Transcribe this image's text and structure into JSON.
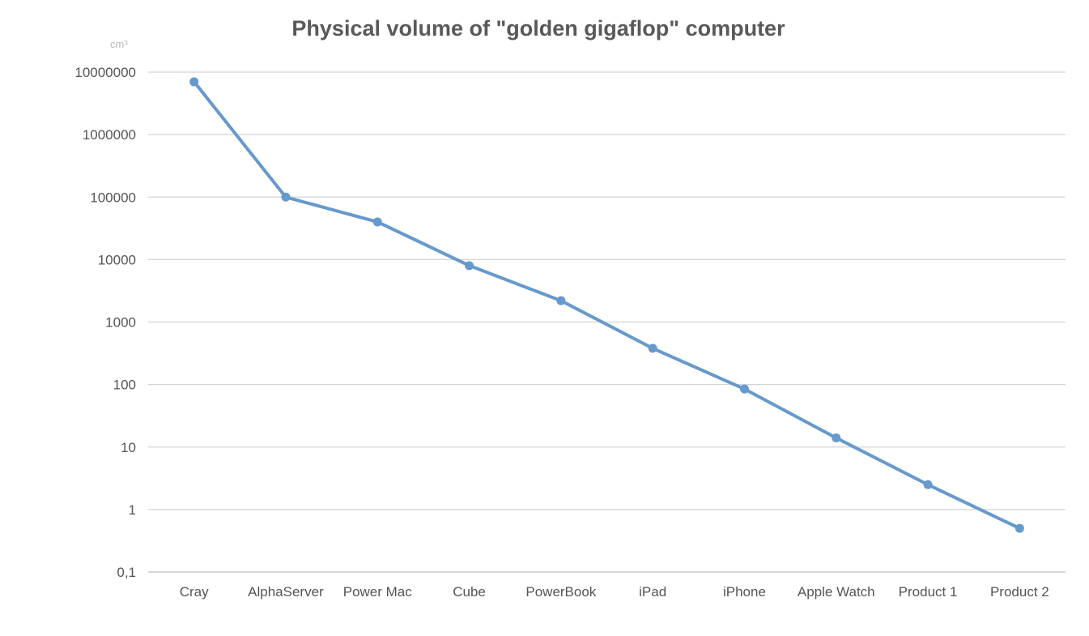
{
  "chart_data": {
    "type": "line",
    "title": "Physical volume of \"golden gigaflop\" computer",
    "unit_label": "cm³",
    "xlabel": "",
    "ylabel": "",
    "yscale": "log",
    "ylim": [
      0.1,
      10000000
    ],
    "y_tick_values": [
      0.1,
      1,
      10,
      100,
      1000,
      10000,
      100000,
      1000000,
      10000000
    ],
    "y_tick_labels": [
      "0,1",
      "1",
      "10",
      "100",
      "1000",
      "10000",
      "100000",
      "1000000",
      "10000000"
    ],
    "grid": true,
    "legend": "none",
    "categories": [
      "Cray",
      "AlphaServer",
      "Power Mac",
      "Cube",
      "PowerBook",
      "iPad",
      "iPhone",
      "Apple Watch",
      "Product 1",
      "Product 2"
    ],
    "series": [
      {
        "color": "#6699cc",
        "values": [
          7000000,
          100000,
          40000,
          8000,
          2200,
          380,
          85,
          14,
          2.5,
          0.5
        ]
      }
    ]
  }
}
